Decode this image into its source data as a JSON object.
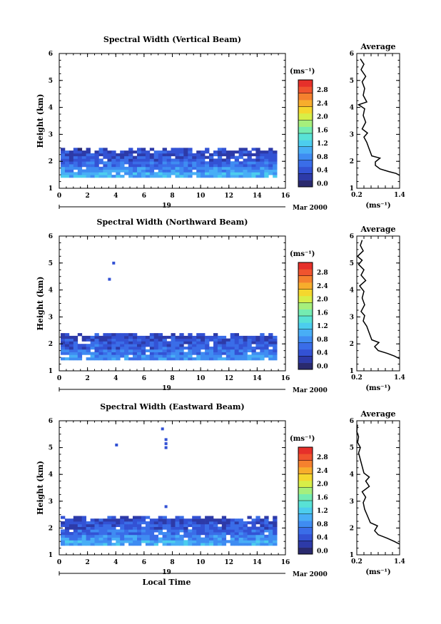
{
  "common": {
    "height_label": "Height (km)",
    "units_label": "(ms⁻¹)",
    "average_title": "Average",
    "date_marker": "19",
    "month_label": "Mar 2000",
    "xlabel": "Local Time"
  },
  "colorbar": {
    "ticks": [
      "0.0",
      "0.4",
      "0.8",
      "1.2",
      "1.6",
      "2.0",
      "2.4",
      "2.8"
    ],
    "colors": [
      "#2a2a6e",
      "#2d3aa8",
      "#3352d4",
      "#3a6de8",
      "#3f8cf2",
      "#48aef6",
      "#4ccdee",
      "#58e2d6",
      "#74ecb2",
      "#a6ef7c",
      "#d7ee48",
      "#f5d72e",
      "#f7ad2c",
      "#f5812e",
      "#f0542e",
      "#e6302a"
    ],
    "range": [
      0,
      3.2
    ]
  },
  "chart_data": [
    {
      "type": "heatmap",
      "title": "Spectral Width (Vertical Beam)",
      "xlabel": "Local Time",
      "ylabel": "Height (km)",
      "xlim": [
        0,
        16
      ],
      "ylim": [
        1,
        6
      ],
      "xticks": [
        "0",
        "2",
        "4",
        "6",
        "8",
        "10",
        "12",
        "14",
        "16"
      ],
      "yticks": [
        "1",
        "2",
        "3",
        "4",
        "5",
        "6"
      ],
      "data_extent": {
        "x": [
          0.1,
          15.2
        ],
        "height": [
          1.4,
          2.5
        ]
      },
      "value_profile_by_height": [
        {
          "height": 1.45,
          "value": 1.1
        },
        {
          "height": 1.65,
          "value": 0.9
        },
        {
          "height": 1.85,
          "value": 0.7
        },
        {
          "height": 2.05,
          "value": 0.55
        },
        {
          "height": 2.25,
          "value": 0.45
        },
        {
          "height": 2.45,
          "value": 0.4
        }
      ],
      "isolated_cells": [],
      "colorbar": {
        "label": "(ms⁻¹)",
        "range": [
          0,
          3.2
        ]
      },
      "average_profile": {
        "title": "Average",
        "xlabel": "(ms⁻¹)",
        "xlim": [
          0.2,
          1.4
        ],
        "xticks": [
          "0.2",
          "1.4"
        ],
        "ylim": [
          1,
          6
        ],
        "yticks": [
          "1",
          "2",
          "3",
          "4",
          "5",
          "6"
        ],
        "points": [
          [
            1.4,
            1.48
          ],
          [
            1.3,
            1.55
          ],
          [
            1.1,
            1.62
          ],
          [
            0.85,
            1.72
          ],
          [
            0.72,
            1.85
          ],
          [
            0.72,
            1.98
          ],
          [
            0.85,
            2.12
          ],
          [
            0.62,
            2.2
          ],
          [
            0.55,
            2.45
          ],
          [
            0.48,
            2.7
          ],
          [
            0.4,
            2.9
          ],
          [
            0.5,
            3.05
          ],
          [
            0.35,
            3.2
          ],
          [
            0.45,
            3.45
          ],
          [
            0.38,
            3.7
          ],
          [
            0.42,
            3.95
          ],
          [
            0.25,
            4.1
          ],
          [
            0.48,
            4.2
          ],
          [
            0.38,
            4.45
          ],
          [
            0.42,
            4.7
          ],
          [
            0.35,
            4.95
          ],
          [
            0.45,
            5.15
          ],
          [
            0.32,
            5.4
          ],
          [
            0.4,
            5.6
          ],
          [
            0.3,
            5.8
          ]
        ]
      },
      "date": "19",
      "month": "Mar 2000"
    },
    {
      "type": "heatmap",
      "title": "Spectral Width (Northward Beam)",
      "xlabel": "Local Time",
      "ylabel": "Height (km)",
      "xlim": [
        0,
        16
      ],
      "ylim": [
        1,
        6
      ],
      "xticks": [
        "0",
        "2",
        "4",
        "6",
        "8",
        "10",
        "12",
        "14",
        "16"
      ],
      "yticks": [
        "1",
        "2",
        "3",
        "4",
        "5",
        "6"
      ],
      "data_extent": {
        "x": [
          0.1,
          15.2
        ],
        "height": [
          1.4,
          2.4
        ]
      },
      "value_profile_by_height": [
        {
          "height": 1.45,
          "value": 0.95
        },
        {
          "height": 1.65,
          "value": 0.75
        },
        {
          "height": 1.85,
          "value": 0.6
        },
        {
          "height": 2.05,
          "value": 0.5
        },
        {
          "height": 2.25,
          "value": 0.42
        }
      ],
      "isolated_cells": [
        {
          "x": 3.75,
          "height": 4.95,
          "value": 0.4
        },
        {
          "x": 3.45,
          "height": 4.35,
          "value": 0.4
        }
      ],
      "colorbar": {
        "label": "(ms⁻¹)",
        "range": [
          0,
          3.2
        ]
      },
      "average_profile": {
        "title": "Average",
        "xlabel": "(ms⁻¹)",
        "xlim": [
          0.2,
          1.4
        ],
        "xticks": [
          "0.2",
          "1.4"
        ],
        "ylim": [
          1,
          6
        ],
        "yticks": [
          "1",
          "2",
          "3",
          "4",
          "5",
          "6"
        ],
        "points": [
          [
            1.4,
            1.45
          ],
          [
            1.25,
            1.55
          ],
          [
            1.05,
            1.65
          ],
          [
            0.8,
            1.75
          ],
          [
            0.7,
            1.9
          ],
          [
            0.82,
            2.05
          ],
          [
            0.62,
            2.15
          ],
          [
            0.55,
            2.4
          ],
          [
            0.48,
            2.65
          ],
          [
            0.38,
            2.85
          ],
          [
            0.42,
            3.05
          ],
          [
            0.32,
            3.2
          ],
          [
            0.42,
            3.45
          ],
          [
            0.35,
            3.7
          ],
          [
            0.4,
            3.95
          ],
          [
            0.28,
            4.15
          ],
          [
            0.45,
            4.35
          ],
          [
            0.32,
            4.55
          ],
          [
            0.4,
            4.75
          ],
          [
            0.25,
            4.95
          ],
          [
            0.35,
            5.1
          ],
          [
            0.22,
            5.25
          ],
          [
            0.38,
            5.45
          ],
          [
            0.3,
            5.65
          ],
          [
            0.35,
            5.85
          ]
        ]
      },
      "date": "19",
      "month": "Mar 2000"
    },
    {
      "type": "heatmap",
      "title": "Spectral Width (Eastward Beam)",
      "xlabel": "Local Time",
      "ylabel": "Height (km)",
      "xlim": [
        0,
        16
      ],
      "ylim": [
        1,
        6
      ],
      "xticks": [
        "0",
        "2",
        "4",
        "6",
        "8",
        "10",
        "12",
        "14",
        "16"
      ],
      "yticks": [
        "1",
        "2",
        "3",
        "4",
        "5",
        "6"
      ],
      "data_extent": {
        "x": [
          0.1,
          15.2
        ],
        "height": [
          1.35,
          2.45
        ]
      },
      "value_profile_by_height": [
        {
          "height": 1.45,
          "value": 1.05
        },
        {
          "height": 1.65,
          "value": 0.85
        },
        {
          "height": 1.85,
          "value": 0.65
        },
        {
          "height": 2.05,
          "value": 0.52
        },
        {
          "height": 2.25,
          "value": 0.43
        }
      ],
      "isolated_cells": [
        {
          "x": 3.95,
          "height": 5.05,
          "value": 0.4
        },
        {
          "x": 7.2,
          "height": 5.65,
          "value": 0.4
        },
        {
          "x": 7.45,
          "height": 5.25,
          "value": 0.4
        },
        {
          "x": 7.45,
          "height": 5.1,
          "value": 0.4
        },
        {
          "x": 7.45,
          "height": 4.95,
          "value": 0.4
        },
        {
          "x": 7.45,
          "height": 2.75,
          "value": 0.4
        }
      ],
      "colorbar": {
        "label": "(ms⁻¹)",
        "range": [
          0,
          3.2
        ]
      },
      "average_profile": {
        "title": "Average",
        "xlabel": "(ms⁻¹)",
        "xlim": [
          0.2,
          1.4
        ],
        "xticks": [
          "0.2",
          "1.4"
        ],
        "ylim": [
          1,
          6
        ],
        "yticks": [
          "1",
          "2",
          "3",
          "4",
          "5",
          "6"
        ],
        "points": [
          [
            1.4,
            1.4
          ],
          [
            1.25,
            1.5
          ],
          [
            1.05,
            1.62
          ],
          [
            0.8,
            1.75
          ],
          [
            0.7,
            1.9
          ],
          [
            0.78,
            2.08
          ],
          [
            0.58,
            2.2
          ],
          [
            0.5,
            2.45
          ],
          [
            0.42,
            2.7
          ],
          [
            0.38,
            2.95
          ],
          [
            0.45,
            3.15
          ],
          [
            0.35,
            3.35
          ],
          [
            0.55,
            3.55
          ],
          [
            0.45,
            3.75
          ],
          [
            0.55,
            3.9
          ],
          [
            0.4,
            4.05
          ],
          [
            0.35,
            4.3
          ],
          [
            0.3,
            4.55
          ],
          [
            0.25,
            4.8
          ],
          [
            0.3,
            5.0
          ],
          [
            0.22,
            5.2
          ],
          [
            0.25,
            5.4
          ],
          [
            0.2,
            5.6
          ],
          [
            0.22,
            5.85
          ]
        ]
      },
      "date": "19",
      "month": "Mar 2000"
    }
  ]
}
